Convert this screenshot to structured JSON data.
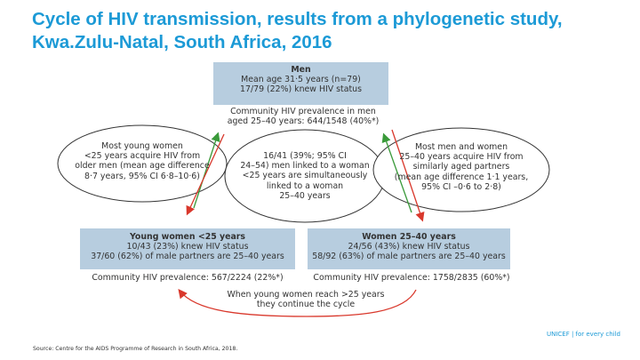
{
  "title": "Cycle of HIV transmission, results from a phylogenetic study, Kwa.Zulu-Natal, South Africa, 2016",
  "men_box": {
    "heading": "Men",
    "lines": [
      "Mean age 31·5 years (n=79)",
      "17/79 (22%) knew HIV status"
    ]
  },
  "men_prevalence": [
    "Community HIV prevalence in men",
    "aged 25–40 years: 644/1548 (40%*)"
  ],
  "left_ellipse": [
    "Most young women",
    "<25 years acquire HIV from",
    "older men (mean age difference",
    "8·7 years, 95% CI 6·8–10·6)"
  ],
  "center_ellipse": [
    "16/41 (39%; 95% CI",
    "24–54) men linked to a woman",
    "<25 years are simultaneously",
    "linked to a woman",
    "25–40 years"
  ],
  "right_ellipse": [
    "Most men and women",
    "25–40 years acquire HIV from",
    "similarly aged partners",
    "(mean age difference 1·1 years,",
    "95% CI –0·6 to 2·8)"
  ],
  "young_women_box": {
    "heading": "Young women <25 years",
    "lines": [
      "10/43 (23%) knew HIV status",
      "37/60 (62%) of male partners are 25–40 years"
    ]
  },
  "women_box": {
    "heading": "Women 25–40 years",
    "lines": [
      "24/56 (43%) knew HIV status",
      "58/92 (63%) of male partners are 25–40 years"
    ]
  },
  "young_women_prevalence": "Community HIV prevalence: 567/2224 (22%*)",
  "women_prevalence": "Community HIV prevalence: 1758/2835 (60%*)",
  "cycle_note": [
    "When young women reach >25 years",
    "they continue the cycle"
  ],
  "source": "Source: Centre for the AIDS Programme of Research in South Africa, 2018.",
  "brand": "UNICEF | for every child",
  "colors": {
    "title": "#1c9ad6",
    "box": "#b7cddf",
    "arrow_green": "#3a9a3a",
    "arrow_red": "#d9382c"
  }
}
